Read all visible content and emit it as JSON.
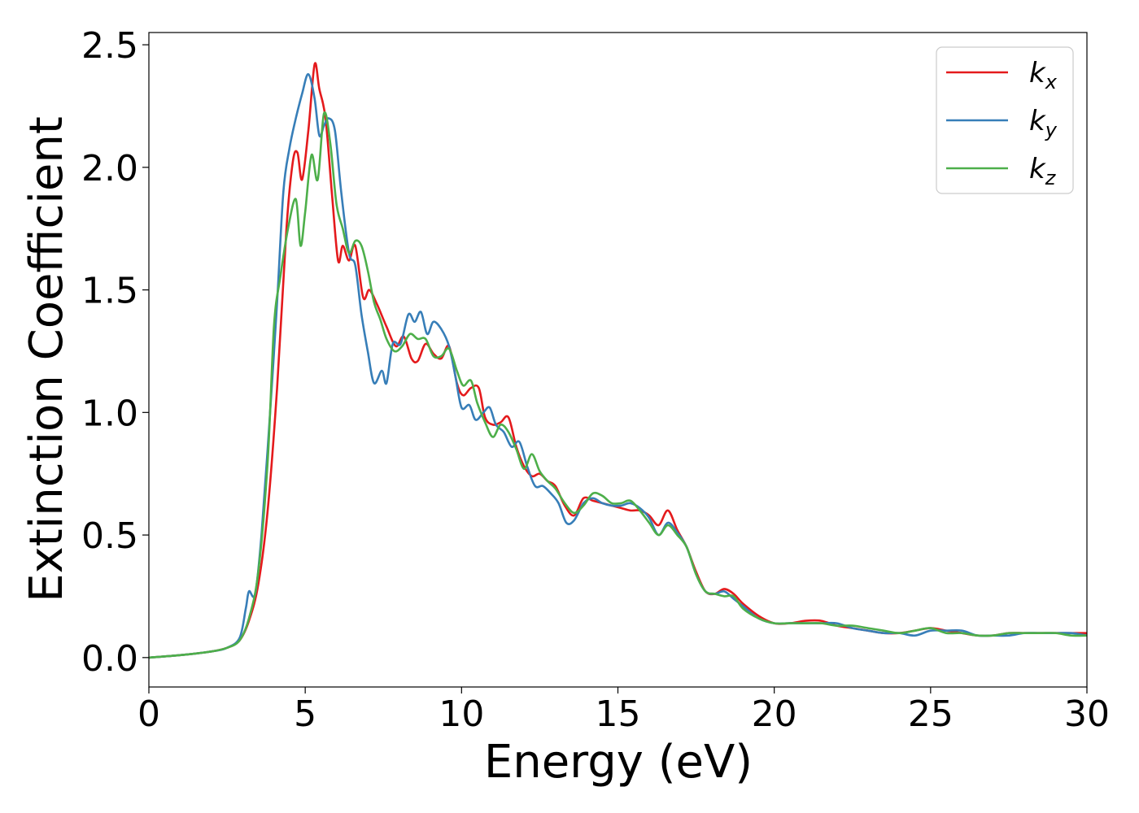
{
  "chart_data": {
    "type": "line",
    "title": "",
    "xlabel": "Energy (eV)",
    "ylabel": "Extinction Coefficient",
    "xlim": [
      0,
      30
    ],
    "ylim": [
      -0.12,
      2.55
    ],
    "xticks": [
      "0",
      "5",
      "10",
      "15",
      "20",
      "25",
      "30"
    ],
    "yticks": [
      "0.0",
      "0.5",
      "1.0",
      "1.5",
      "2.0",
      "2.5"
    ],
    "grid": false,
    "legend_position": "top-right",
    "series": [
      {
        "name": "k",
        "subscript": "x",
        "color": "#e41a1c",
        "x": [
          0,
          1,
          2,
          2.5,
          2.9,
          3.2,
          3.5,
          3.8,
          4.1,
          4.4,
          4.6,
          4.75,
          4.9,
          5.1,
          5.3,
          5.45,
          5.65,
          5.85,
          6.05,
          6.2,
          6.4,
          6.6,
          6.85,
          7.05,
          7.3,
          7.6,
          7.9,
          8.15,
          8.4,
          8.6,
          8.85,
          9.1,
          9.35,
          9.6,
          9.85,
          10.05,
          10.3,
          10.55,
          10.75,
          11.0,
          11.25,
          11.5,
          11.75,
          12.0,
          12.25,
          12.5,
          12.75,
          13.0,
          13.3,
          13.6,
          13.9,
          14.2,
          14.5,
          14.8,
          15.1,
          15.4,
          15.7,
          16.0,
          16.3,
          16.6,
          16.9,
          17.2,
          17.5,
          17.8,
          18.1,
          18.4,
          18.7,
          19.0,
          19.5,
          20.0,
          20.5,
          21.0,
          21.5,
          22.0,
          22.5,
          23.0,
          23.5,
          24.0,
          24.5,
          25.0,
          25.5,
          26.0,
          26.5,
          27.0,
          27.5,
          28.0,
          28.5,
          29.0,
          29.5,
          30.0
        ],
        "y": [
          0.0,
          0.01,
          0.025,
          0.04,
          0.07,
          0.15,
          0.3,
          0.6,
          1.1,
          1.75,
          2.02,
          2.06,
          1.95,
          2.15,
          2.42,
          2.32,
          2.2,
          1.9,
          1.62,
          1.68,
          1.62,
          1.68,
          1.47,
          1.5,
          1.44,
          1.35,
          1.27,
          1.31,
          1.22,
          1.21,
          1.28,
          1.24,
          1.22,
          1.27,
          1.12,
          1.07,
          1.1,
          1.1,
          0.98,
          0.95,
          0.96,
          0.98,
          0.86,
          0.78,
          0.74,
          0.75,
          0.72,
          0.7,
          0.62,
          0.58,
          0.65,
          0.64,
          0.63,
          0.62,
          0.61,
          0.6,
          0.6,
          0.58,
          0.54,
          0.6,
          0.52,
          0.45,
          0.35,
          0.27,
          0.26,
          0.28,
          0.26,
          0.22,
          0.17,
          0.14,
          0.14,
          0.15,
          0.15,
          0.13,
          0.12,
          0.11,
          0.1,
          0.1,
          0.11,
          0.12,
          0.11,
          0.1,
          0.09,
          0.09,
          0.1,
          0.1,
          0.1,
          0.1,
          0.1,
          0.1
        ]
      },
      {
        "name": "k",
        "subscript": "y",
        "color": "#377eb8",
        "x": [
          0,
          1,
          2,
          2.5,
          2.9,
          3.1,
          3.2,
          3.4,
          3.6,
          3.85,
          4.1,
          4.3,
          4.5,
          4.7,
          4.9,
          5.1,
          5.3,
          5.45,
          5.6,
          5.75,
          5.95,
          6.15,
          6.4,
          6.6,
          6.8,
          7.0,
          7.2,
          7.45,
          7.6,
          7.8,
          8.05,
          8.3,
          8.5,
          8.7,
          8.9,
          9.1,
          9.35,
          9.6,
          9.8,
          10.0,
          10.25,
          10.45,
          10.7,
          10.9,
          11.1,
          11.35,
          11.6,
          11.85,
          12.1,
          12.35,
          12.6,
          12.85,
          13.1,
          13.35,
          13.6,
          13.9,
          14.2,
          14.5,
          14.8,
          15.1,
          15.4,
          15.7,
          16.0,
          16.3,
          16.6,
          16.9,
          17.2,
          17.5,
          17.8,
          18.1,
          18.4,
          18.7,
          19.0,
          19.5,
          20.0,
          20.5,
          21.0,
          21.5,
          22.0,
          22.5,
          23.0,
          23.5,
          24.0,
          24.5,
          25.0,
          25.5,
          26.0,
          26.5,
          27.0,
          27.5,
          28.0,
          28.5,
          29.0,
          29.5,
          30.0
        ],
        "y": [
          0.0,
          0.01,
          0.025,
          0.04,
          0.08,
          0.2,
          0.27,
          0.26,
          0.5,
          0.95,
          1.45,
          1.9,
          2.08,
          2.2,
          2.3,
          2.38,
          2.28,
          2.13,
          2.17,
          2.2,
          2.15,
          1.9,
          1.65,
          1.6,
          1.4,
          1.25,
          1.12,
          1.17,
          1.12,
          1.28,
          1.28,
          1.4,
          1.37,
          1.41,
          1.32,
          1.37,
          1.34,
          1.27,
          1.15,
          1.02,
          1.03,
          0.97,
          1.0,
          1.02,
          0.95,
          0.92,
          0.86,
          0.88,
          0.78,
          0.7,
          0.7,
          0.67,
          0.63,
          0.55,
          0.56,
          0.63,
          0.65,
          0.63,
          0.62,
          0.62,
          0.63,
          0.61,
          0.57,
          0.5,
          0.55,
          0.51,
          0.45,
          0.34,
          0.27,
          0.26,
          0.27,
          0.24,
          0.21,
          0.16,
          0.14,
          0.14,
          0.14,
          0.14,
          0.14,
          0.12,
          0.11,
          0.1,
          0.1,
          0.09,
          0.11,
          0.11,
          0.11,
          0.09,
          0.09,
          0.09,
          0.1,
          0.1,
          0.1,
          0.1,
          0.09
        ]
      },
      {
        "name": "k",
        "subscript": "z",
        "color": "#4daf4a",
        "x": [
          0,
          1,
          2,
          2.5,
          2.9,
          3.2,
          3.5,
          3.8,
          4.0,
          4.2,
          4.45,
          4.7,
          4.85,
          5.0,
          5.2,
          5.4,
          5.6,
          5.8,
          6.0,
          6.2,
          6.4,
          6.6,
          6.8,
          7.0,
          7.2,
          7.4,
          7.6,
          7.85,
          8.1,
          8.35,
          8.6,
          8.85,
          9.1,
          9.35,
          9.6,
          9.85,
          10.05,
          10.3,
          10.5,
          10.75,
          11.0,
          11.25,
          11.5,
          11.75,
          12.0,
          12.25,
          12.5,
          12.75,
          13.0,
          13.3,
          13.6,
          13.9,
          14.2,
          14.5,
          14.8,
          15.1,
          15.4,
          15.7,
          16.0,
          16.3,
          16.6,
          16.9,
          17.2,
          17.5,
          17.8,
          18.1,
          18.4,
          18.7,
          19.0,
          19.5,
          20.0,
          20.5,
          21.0,
          21.5,
          22.0,
          22.5,
          23.0,
          23.5,
          24.0,
          24.5,
          25.0,
          25.5,
          26.0,
          26.5,
          27.0,
          27.5,
          28.0,
          28.5,
          29.0,
          29.5,
          30.0
        ],
        "y": [
          0.0,
          0.01,
          0.025,
          0.04,
          0.07,
          0.16,
          0.35,
          0.8,
          1.35,
          1.55,
          1.75,
          1.87,
          1.68,
          1.82,
          2.05,
          1.95,
          2.22,
          2.1,
          1.85,
          1.75,
          1.65,
          1.7,
          1.68,
          1.58,
          1.45,
          1.38,
          1.3,
          1.25,
          1.27,
          1.32,
          1.3,
          1.3,
          1.23,
          1.23,
          1.26,
          1.17,
          1.11,
          1.13,
          1.04,
          0.96,
          0.9,
          0.95,
          0.92,
          0.85,
          0.77,
          0.83,
          0.76,
          0.72,
          0.69,
          0.63,
          0.59,
          0.62,
          0.67,
          0.66,
          0.63,
          0.63,
          0.64,
          0.6,
          0.55,
          0.5,
          0.54,
          0.5,
          0.45,
          0.34,
          0.27,
          0.26,
          0.25,
          0.25,
          0.2,
          0.16,
          0.14,
          0.14,
          0.14,
          0.14,
          0.13,
          0.13,
          0.12,
          0.11,
          0.1,
          0.11,
          0.12,
          0.1,
          0.1,
          0.09,
          0.09,
          0.1,
          0.1,
          0.1,
          0.1,
          0.09,
          0.09
        ]
      }
    ]
  }
}
